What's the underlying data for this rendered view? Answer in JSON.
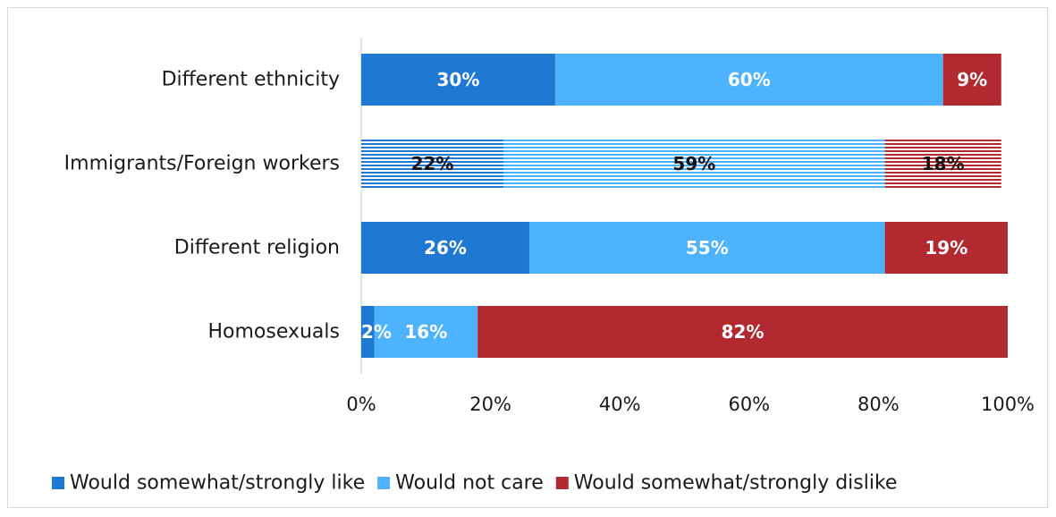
{
  "chart_data": {
    "type": "bar",
    "orientation": "horizontal",
    "stacked": "percent",
    "categories": [
      "Different ethnicity",
      "Immigrants/Foreign workers",
      "Different religion",
      "Homosexuals"
    ],
    "series": [
      {
        "name": "Would somewhat/strongly like",
        "values": [
          30,
          22,
          26,
          2
        ],
        "labels": [
          "30%",
          "22%",
          "26%",
          "2%"
        ],
        "color": "#1f78d1"
      },
      {
        "name": "Would not care",
        "values": [
          60,
          59,
          55,
          16
        ],
        "labels": [
          "60%",
          "59%",
          "55%",
          "16%"
        ],
        "color": "#4db3ff"
      },
      {
        "name": "Would somewhat/strongly dislike",
        "values": [
          9,
          18,
          19,
          82
        ],
        "labels": [
          "9%",
          "18%",
          "19%",
          "82%"
        ],
        "color": "#b22a30"
      }
    ],
    "striped_category_index": 1,
    "xlim": [
      0,
      100
    ],
    "xticks": [
      "0%",
      "20%",
      "40%",
      "60%",
      "80%",
      "100%"
    ],
    "legend_position": "bottom",
    "grid": false
  }
}
